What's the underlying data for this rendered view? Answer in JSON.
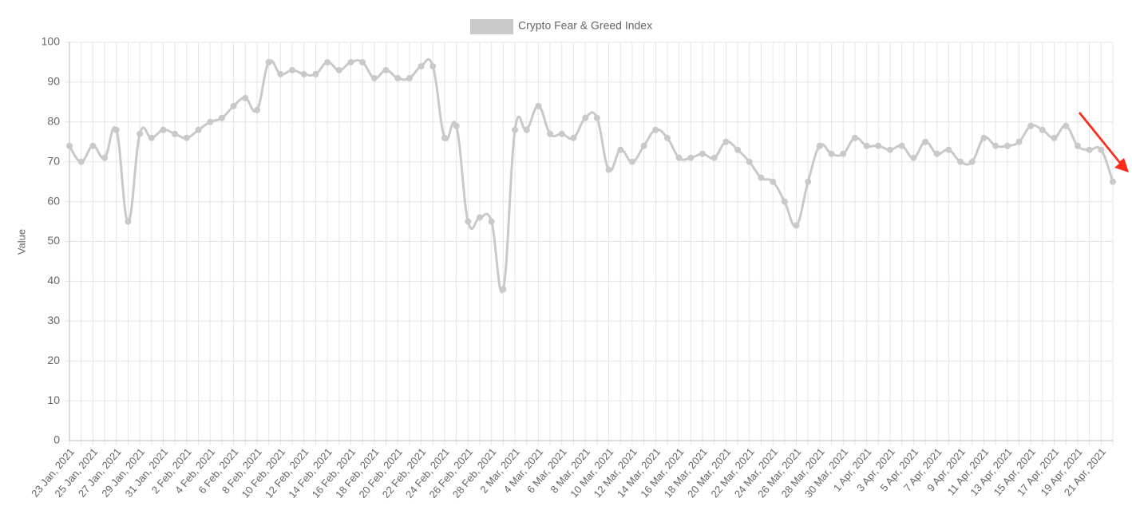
{
  "chart_data": {
    "type": "line",
    "legend": "Crypto Fear & Greed Index",
    "y_label": "Value",
    "color": "#c9c9c9",
    "categories": [
      "23 Jan, 2021",
      null,
      "25 Jan, 2021",
      null,
      "27 Jan, 2021",
      null,
      "29 Jan, 2021",
      null,
      "31 Jan, 2021",
      null,
      "2 Feb, 2021",
      null,
      "4 Feb, 2021",
      null,
      "6 Feb, 2021",
      null,
      "8 Feb, 2021",
      null,
      "10 Feb, 2021",
      null,
      "12 Feb, 2021",
      null,
      "14 Feb, 2021",
      null,
      "16 Feb, 2021",
      null,
      "18 Feb, 2021",
      null,
      "20 Feb, 2021",
      null,
      "22 Feb, 2021",
      null,
      "24 Feb, 2021",
      null,
      "26 Feb, 2021",
      null,
      "28 Feb, 2021",
      null,
      "2 Mar, 2021",
      null,
      "4 Mar, 2021",
      null,
      "6 Mar, 2021",
      null,
      "8 Mar, 2021",
      null,
      "10 Mar, 2021",
      null,
      "12 Mar, 2021",
      null,
      "14 Mar, 2021",
      null,
      "16 Mar, 2021",
      null,
      "18 Mar, 2021",
      null,
      "20 Mar, 2021",
      null,
      "22 Mar, 2021",
      null,
      "24 Mar, 2021",
      null,
      "26 Mar, 2021",
      null,
      "28 Mar, 2021",
      null,
      "30 Mar, 2021",
      null,
      "1 Apr, 2021",
      null,
      "3 Apr, 2021",
      null,
      "5 Apr, 2021",
      null,
      "7 Apr, 2021",
      null,
      "9 Apr, 2021",
      null,
      "11 Apr, 2021",
      null,
      "13 Apr, 2021",
      null,
      "15 Apr, 2021",
      null,
      "17 Apr, 2021",
      null,
      "19 Apr, 2021",
      null,
      "21 Apr, 2021",
      null
    ],
    "values": [
      74,
      70,
      74,
      71,
      78,
      55,
      77,
      76,
      78,
      77,
      76,
      78,
      80,
      81,
      84,
      86,
      83,
      95,
      92,
      93,
      92,
      92,
      95,
      93,
      95,
      95,
      91,
      93,
      91,
      91,
      94,
      94,
      76,
      79,
      55,
      56,
      55,
      38,
      78,
      78,
      84,
      77,
      77,
      76,
      81,
      81,
      68,
      73,
      70,
      74,
      78,
      76,
      71,
      71,
      72,
      71,
      75,
      73,
      70,
      66,
      65,
      60,
      54,
      65,
      74,
      72,
      72,
      76,
      74,
      74,
      73,
      74,
      71,
      75,
      72,
      73,
      70,
      70,
      76,
      74,
      74,
      75,
      79,
      78,
      76,
      79,
      74,
      73,
      73,
      65
    ],
    "ylim": [
      0,
      100
    ],
    "yticks": [
      0,
      10,
      20,
      30,
      40,
      50,
      60,
      70,
      80,
      90,
      100
    ],
    "grid": true
  }
}
